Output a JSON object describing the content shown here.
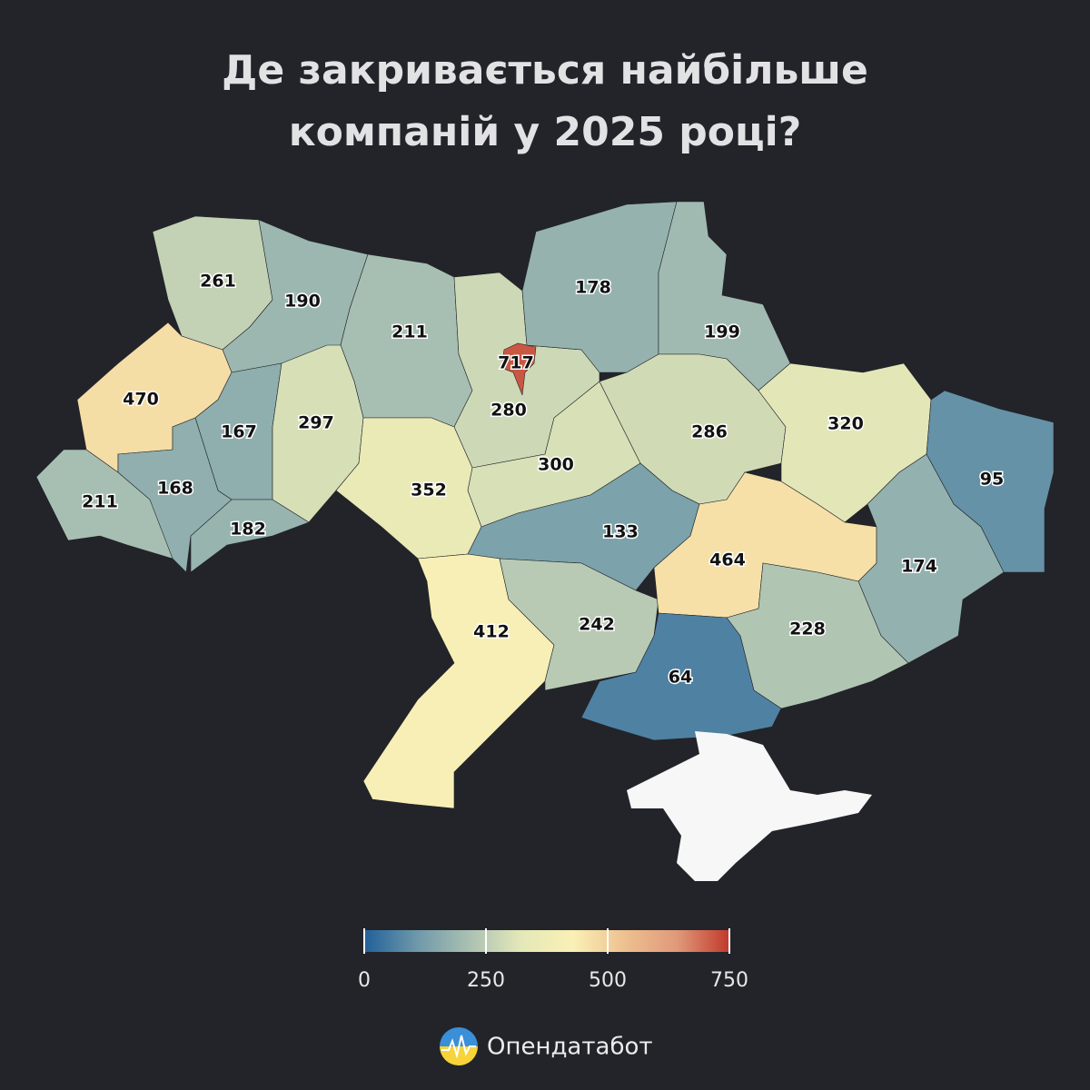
{
  "chart_data": {
    "type": "choropleth",
    "title": [
      "Де закривається найбільше",
      "компаній у 2025 році?"
    ],
    "values": [
      261,
      190,
      211,
      280,
      717,
      178,
      199,
      470,
      167,
      297,
      352,
      300,
      286,
      320,
      95,
      211,
      168,
      182,
      133,
      412,
      242,
      464,
      174,
      228,
      64
    ],
    "colorlim": [
      0,
      750
    ],
    "colorticks": [
      0,
      250,
      500,
      750
    ],
    "colormap": [
      "#21609a",
      "#6e98a9",
      "#a9c0b2",
      "#e4e8b8",
      "#faf0b5",
      "#edc08f",
      "#e0997a",
      "#c0392b"
    ],
    "brand": "Опендатабот"
  }
}
